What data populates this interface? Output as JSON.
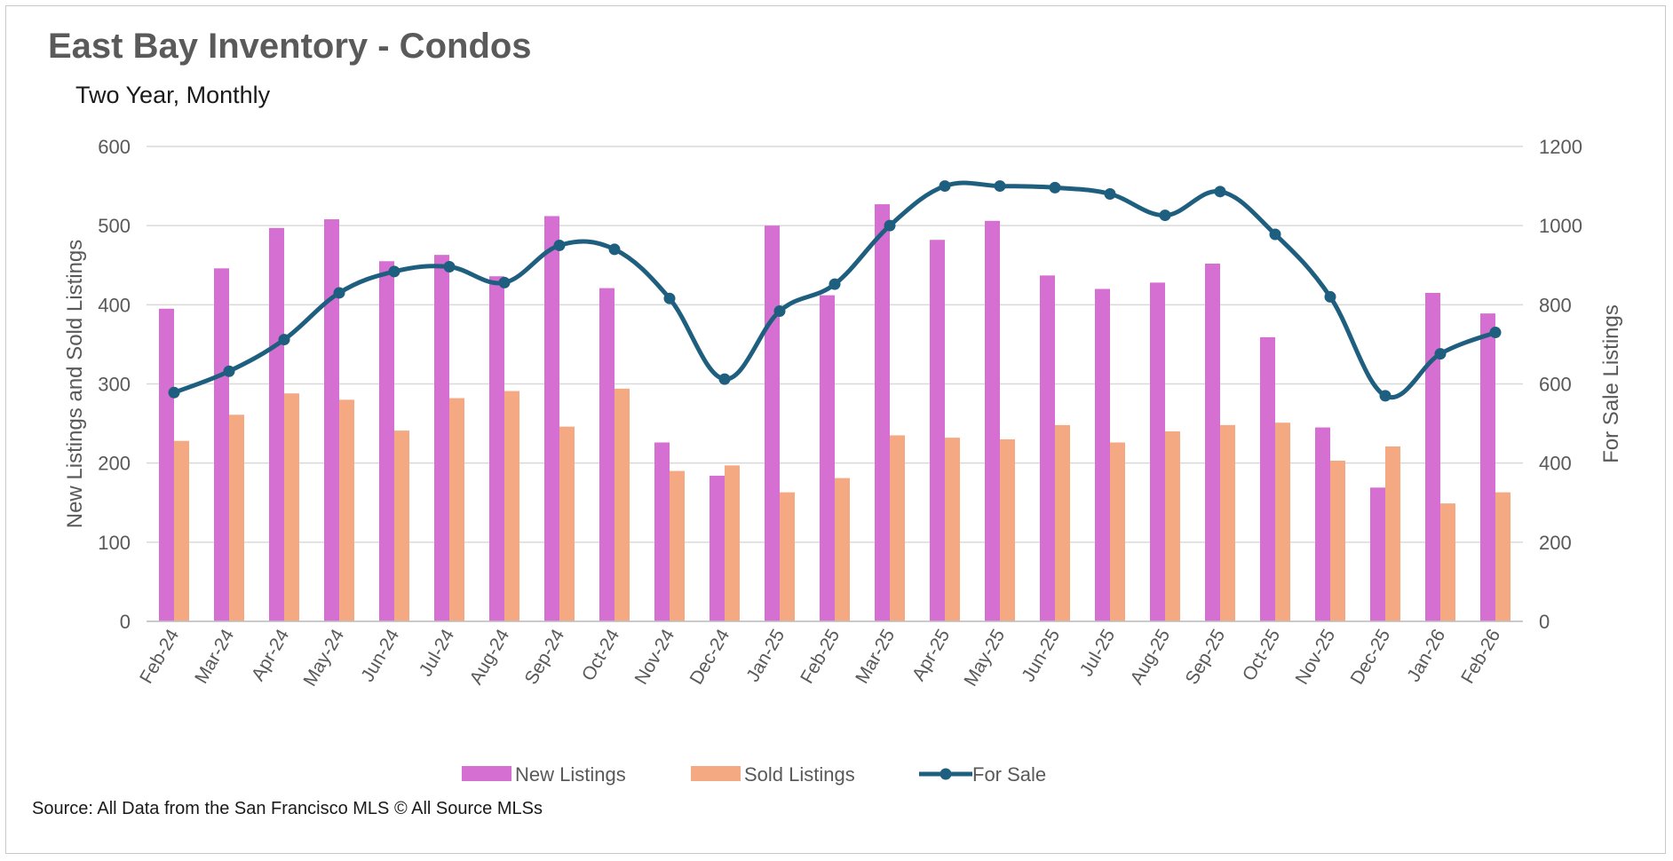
{
  "title": "East Bay Inventory - Condos",
  "subtitle": "Two Year, Monthly",
  "source": "Source: All Data from the San Francisco MLS © All Source MLSs",
  "chart_data": {
    "type": "bar",
    "categories": [
      "Feb-24",
      "Mar-24",
      "Apr-24",
      "May-24",
      "Jun-24",
      "Jul-24",
      "Aug-24",
      "Sep-24",
      "Oct-24",
      "Nov-24",
      "Dec-24",
      "Jan-25",
      "Feb-25",
      "Mar-25",
      "Apr-25",
      "May-25",
      "Jun-25",
      "Jul-25",
      "Aug-25",
      "Sep-25",
      "Oct-25",
      "Nov-25",
      "Dec-25",
      "Jan-26",
      "Feb-26"
    ],
    "series": [
      {
        "name": "New Listings",
        "type": "bar",
        "axis": "left",
        "color": "#d56fd1",
        "values": [
          395,
          446,
          497,
          508,
          455,
          463,
          436,
          512,
          421,
          226,
          184,
          500,
          412,
          527,
          482,
          506,
          437,
          420,
          428,
          452,
          359,
          245,
          169,
          415,
          389
        ]
      },
      {
        "name": "Sold Listings",
        "type": "bar",
        "axis": "left",
        "color": "#f4a983",
        "values": [
          228,
          261,
          288,
          280,
          241,
          282,
          291,
          246,
          294,
          190,
          197,
          163,
          181,
          235,
          232,
          230,
          248,
          226,
          240,
          248,
          251,
          203,
          221,
          149,
          163
        ]
      },
      {
        "name": "For Sale",
        "type": "line",
        "axis": "right",
        "color": "#1e5f7f",
        "values": [
          578,
          632,
          712,
          830,
          884,
          896,
          856,
          950,
          940,
          816,
          612,
          784,
          852,
          1000,
          1100,
          1100,
          1096,
          1080,
          1026,
          1086,
          978,
          820,
          570,
          676,
          730
        ]
      }
    ],
    "ylabel": "New Listings and Sold Listings",
    "y2label": "For Sale Listings",
    "ylim": [
      0,
      600
    ],
    "y2lim": [
      0,
      1200
    ],
    "yticks": [
      "0",
      "100",
      "200",
      "300",
      "400",
      "500",
      "600"
    ],
    "y2ticks": [
      "0",
      "200",
      "400",
      "600",
      "800",
      "1000",
      "1200"
    ],
    "grid": true,
    "legend_position": "bottom"
  }
}
